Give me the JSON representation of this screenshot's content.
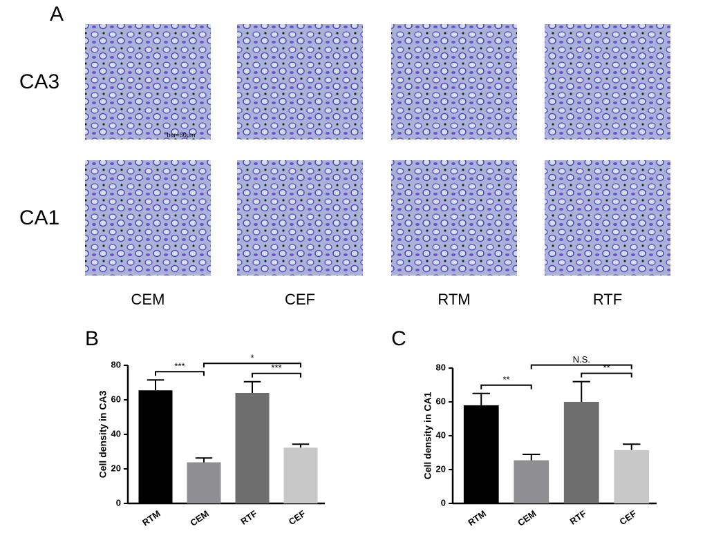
{
  "figure": {
    "panel_label": "A",
    "rows": [
      "CA3",
      "CA1"
    ],
    "columns": [
      "CEM",
      "CEF",
      "RTM",
      "RTF"
    ],
    "scale_bar": "bar=50μm"
  },
  "chart_data": [
    {
      "type": "bar",
      "panel_label": "B",
      "y_label": "Cell density in CA3",
      "categories": [
        "RTM",
        "CEM",
        "RTF",
        "CEF"
      ],
      "values": [
        65.5,
        23.8,
        64,
        32.3
      ],
      "errors": [
        6,
        2.5,
        6.5,
        2
      ],
      "colors": [
        "#000000",
        "#8e8e93",
        "#6e6e6e",
        "#c8c8c8"
      ],
      "ylim": [
        0,
        80
      ],
      "yticks": [
        0,
        20,
        40,
        60,
        80
      ],
      "annotations": [
        {
          "text": "***",
          "pair": [
            "RTM",
            "CEM"
          ]
        },
        {
          "text": "***",
          "pair": [
            "RTF",
            "CEF"
          ]
        },
        {
          "text": "*",
          "pair": [
            "CEM",
            "CEF"
          ]
        }
      ]
    },
    {
      "type": "bar",
      "panel_label": "C",
      "y_label": "Cell density in CA1",
      "categories": [
        "RTM",
        "CEM",
        "RTF",
        "CEF"
      ],
      "values": [
        58,
        25.5,
        60,
        31.5
      ],
      "errors": [
        7,
        3.5,
        12,
        3.5
      ],
      "colors": [
        "#000000",
        "#8e8e93",
        "#6e6e6e",
        "#c8c8c8"
      ],
      "ylim": [
        0,
        80
      ],
      "yticks": [
        0,
        20,
        40,
        60,
        80
      ],
      "annotations": [
        {
          "text": "**",
          "pair": [
            "RTM",
            "CEM"
          ]
        },
        {
          "text": "**",
          "pair": [
            "RTF",
            "CEF"
          ]
        },
        {
          "text": "N.S.",
          "pair": [
            "CEM",
            "CEF"
          ]
        }
      ]
    }
  ]
}
